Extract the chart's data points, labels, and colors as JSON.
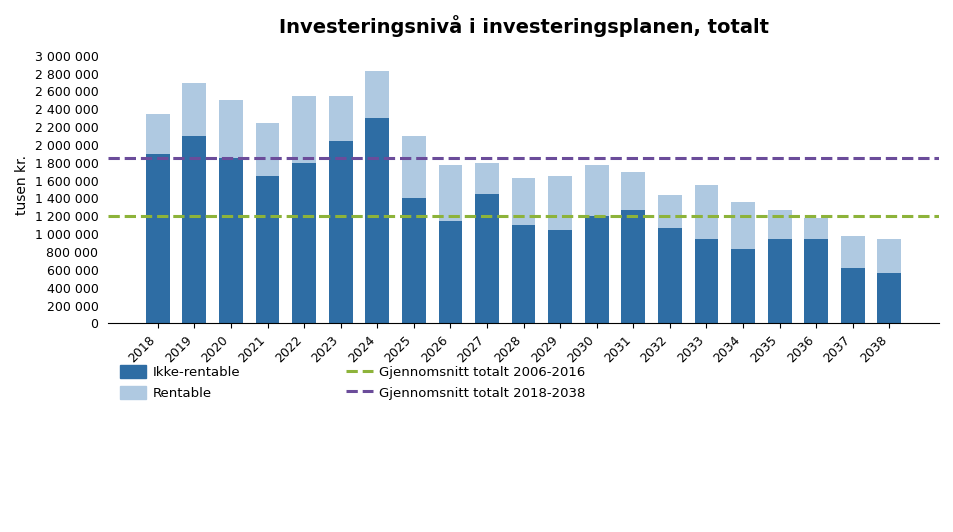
{
  "title": "Investeringsnivå i investeringsplanen, totalt",
  "ylabel": "tusen kr.",
  "years": [
    2018,
    2019,
    2020,
    2021,
    2022,
    2023,
    2024,
    2025,
    2026,
    2027,
    2028,
    2029,
    2030,
    2031,
    2032,
    2033,
    2034,
    2035,
    2036,
    2037,
    2038
  ],
  "ikke_rentable": [
    1900000,
    2100000,
    1850000,
    1650000,
    1800000,
    2050000,
    2300000,
    1400000,
    1150000,
    1450000,
    1100000,
    1050000,
    1200000,
    1270000,
    1070000,
    950000,
    830000,
    950000,
    950000,
    620000,
    560000
  ],
  "rentable": [
    450000,
    600000,
    650000,
    600000,
    750000,
    500000,
    530000,
    700000,
    620000,
    350000,
    530000,
    600000,
    580000,
    430000,
    370000,
    600000,
    530000,
    320000,
    230000,
    360000,
    390000
  ],
  "avg_2006_2016": 1200000,
  "avg_2018_2038": 1850000,
  "color_ikke_rentable": "#2E6DA4",
  "color_rentable": "#AFC9E1",
  "color_avg_2006": "#8DB33A",
  "color_avg_2018": "#6B4C9A",
  "ylim": [
    0,
    3100000
  ],
  "yticks": [
    0,
    200000,
    400000,
    600000,
    800000,
    1000000,
    1200000,
    1400000,
    1600000,
    1800000,
    2000000,
    2200000,
    2400000,
    2600000,
    2800000,
    3000000
  ],
  "legend_items": [
    "Ikke-rentable",
    "Rentable",
    "Gjennomsnitt totalt 2006-2016",
    "Gjennomsnitt totalt 2018-2038"
  ],
  "bg_color": "#F2F2F2"
}
